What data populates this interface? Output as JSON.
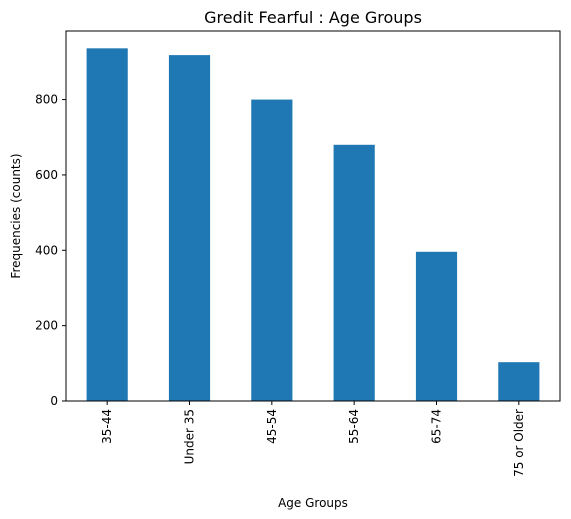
{
  "chart_data": {
    "type": "bar",
    "title": "Gredit Fearful : Age Groups",
    "xlabel": "Age Groups",
    "ylabel": "Frequencies (counts)",
    "categories": [
      "35-44",
      "Under 35",
      "45-54",
      "55-64",
      "65-74",
      "75 or Older"
    ],
    "values": [
      936,
      918,
      800,
      680,
      396,
      103
    ],
    "ylim": [
      0,
      982
    ],
    "yticks": [
      0,
      200,
      400,
      600,
      800
    ],
    "grid": false,
    "bar_color": "#1f77b4"
  }
}
